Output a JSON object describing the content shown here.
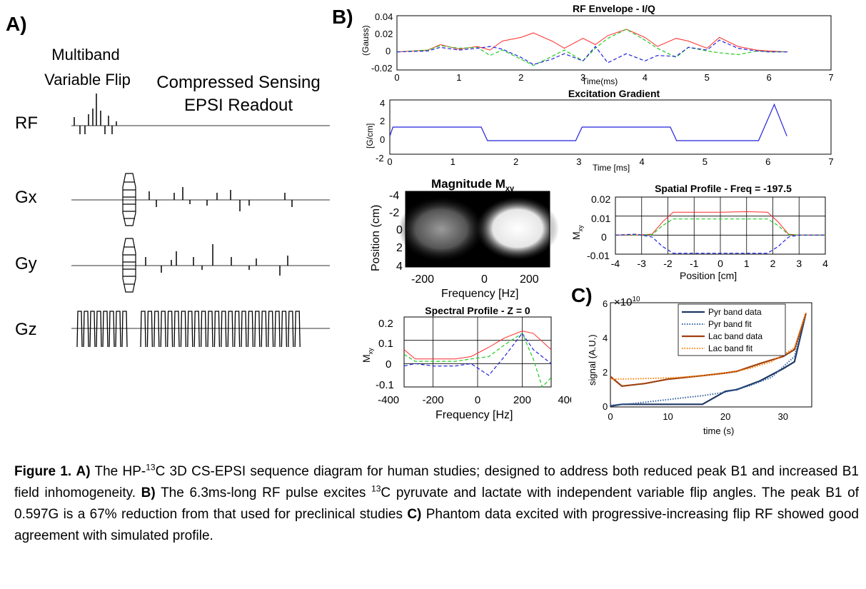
{
  "panelA": {
    "letter": "A)",
    "title_multiband": "Multiband",
    "title_variable_flip": "Variable Flip",
    "title_cs_line1": "Compressed Sensing",
    "title_cs_line2": "EPSI Readout",
    "row_labels": [
      "RF",
      "Gx",
      "Gy",
      "Gz"
    ]
  },
  "panelB": {
    "letter": "B)",
    "rf_envelope": {
      "title": "RF Envelope - I/Q",
      "ylabel": "(Gauss)",
      "xlabel": "Time(ms)",
      "xticks": [
        "0",
        "1",
        "2",
        "3",
        "4",
        "5",
        "6",
        "7"
      ],
      "yticks": [
        "0.04",
        "0.02",
        "0",
        "-0.02"
      ]
    },
    "excitation_gradient": {
      "title": "Excitation Gradient",
      "ylabel": "[G/cm]",
      "xlabel": "Time [ms]",
      "xticks": [
        "0",
        "1",
        "2",
        "3",
        "4",
        "5",
        "6",
        "7"
      ],
      "yticks": [
        "4",
        "2",
        "0",
        "-2"
      ]
    },
    "magnitude": {
      "title": "Magnitude M",
      "title_sub": "xy",
      "ylabel": "Position (cm)",
      "xlabel": "Frequency [Hz]",
      "yticks": [
        "-4",
        "-2",
        "0",
        "2",
        "4"
      ],
      "xticks": [
        "-200",
        "0",
        "200"
      ]
    },
    "spatial_profile": {
      "title": "Spatial Profile - Freq = -197.5",
      "ylabel": "M",
      "ylabel_sub": "xy",
      "xlabel": "Position [cm]",
      "yticks": [
        "0.02",
        "0.01",
        "0",
        "-0.01"
      ],
      "xticks": [
        "-4",
        "-3",
        "-2",
        "-1",
        "0",
        "1",
        "2",
        "3",
        "4"
      ]
    },
    "spectral_profile": {
      "title": "Spectral Profile - Z = 0",
      "ylabel": "M",
      "ylabel_sub": "xy",
      "xlabel": "Frequency [Hz]",
      "yticks": [
        "0.2",
        "0.1",
        "0",
        "-0.1"
      ],
      "xticks": [
        "-400",
        "-200",
        "0",
        "200",
        "400"
      ]
    }
  },
  "panelC": {
    "letter": "C)",
    "exponent": "×10",
    "exponent_power": "10",
    "ylabel": "signal (A.U.)",
    "xlabel": "time (s)",
    "yticks": [
      "6",
      "4",
      "2",
      "0"
    ],
    "xticks": [
      "0",
      "10",
      "20",
      "30"
    ],
    "legend": [
      "Pyr band data",
      "Pyr band fit",
      "Lac band data",
      "Lac band fit"
    ]
  },
  "colors": {
    "red": "#ff2a2a",
    "green": "#22cc22",
    "blue": "#2222dd",
    "pyr": "#1f3864",
    "lac": "#a04010",
    "lac_fit": "#ff8000",
    "sequence_gray": "#999999"
  },
  "chart_data": [
    {
      "type": "line",
      "title": "RF Envelope - I/Q",
      "xlabel": "Time(ms)",
      "ylabel": "(Gauss)",
      "xlim": [
        0,
        7
      ],
      "ylim": [
        -0.02,
        0.04
      ],
      "series": [
        {
          "x": [
            0,
            0.5,
            0.7,
            1.0,
            1.3,
            1.5,
            1.7,
            2.0,
            2.2,
            2.5,
            2.7,
            3.0,
            3.2,
            3.4,
            3.7,
            4.0,
            4.2,
            4.5,
            4.7,
            5.0,
            5.2,
            5.5,
            5.8,
            6.0,
            6.3
          ],
          "y": [
            0,
            0.002,
            0.008,
            0.003,
            0.006,
            0.002,
            0.012,
            0.016,
            0.021,
            0.012,
            0.004,
            0.015,
            0.008,
            0.018,
            0.025,
            0.016,
            0.006,
            0.015,
            0.012,
            0.004,
            0.016,
            0.006,
            0.002,
            0.001,
            0
          ]
        },
        {
          "x": [
            0,
            0.5,
            0.7,
            1.0,
            1.3,
            1.5,
            1.7,
            2.0,
            2.2,
            2.5,
            2.7,
            3.0,
            3.2,
            3.4,
            3.7,
            4.0,
            4.2,
            4.5,
            4.7,
            5.0,
            5.2,
            5.5,
            5.8,
            6.0,
            6.3
          ],
          "y": [
            0,
            0.002,
            0.007,
            0.004,
            0.005,
            -0.004,
            0.002,
            -0.008,
            -0.015,
            -0.005,
            0.002,
            -0.01,
            0.004,
            0.015,
            0.025,
            0.013,
            0.004,
            -0.006,
            0.005,
            0.001,
            -0.001,
            -0.003,
            0.001,
            0,
            0
          ]
        },
        {
          "x": [
            0,
            0.5,
            0.7,
            1.0,
            1.3,
            1.5,
            1.7,
            2.0,
            2.2,
            2.5,
            2.7,
            3.0,
            3.2,
            3.4,
            3.7,
            4.0,
            4.2,
            4.5,
            4.7,
            5.0,
            5.2,
            5.5,
            5.8,
            6.0,
            6.3
          ],
          "y": [
            0,
            0.001,
            0.005,
            0.002,
            0.004,
            0.006,
            0.003,
            -0.006,
            -0.014,
            -0.008,
            -0.002,
            -0.01,
            0.006,
            -0.012,
            -0.002,
            -0.01,
            -0.004,
            -0.005,
            0.005,
            0.002,
            0.013,
            0.004,
            0.001,
            0,
            0
          ]
        }
      ]
    },
    {
      "type": "line",
      "title": "Excitation Gradient",
      "xlabel": "Time [ms]",
      "ylabel": "[G/cm]",
      "xlim": [
        0,
        7
      ],
      "ylim": [
        -2,
        4
      ],
      "series": [
        {
          "x": [
            0,
            0.05,
            1.45,
            1.55,
            2.95,
            3.05,
            4.45,
            4.55,
            5.85,
            6.1,
            6.3
          ],
          "y": [
            0,
            1,
            1,
            -0.5,
            -0.5,
            1,
            1,
            -0.5,
            -0.5,
            3.5,
            0
          ]
        }
      ]
    },
    {
      "type": "heatmap",
      "title": "Magnitude Mxy",
      "xlabel": "Frequency [Hz]",
      "ylabel": "Position (cm)",
      "xlim": [
        -350,
        350
      ],
      "ylim": [
        -4,
        4
      ]
    },
    {
      "type": "line",
      "title": "Spatial Profile - Freq = -197.5",
      "xlabel": "Position [cm]",
      "ylabel": "Mxy",
      "xlim": [
        -4,
        4
      ],
      "ylim": [
        -0.01,
        0.02
      ],
      "series": [
        {
          "x": [
            -4,
            -3.2,
            -2.6,
            -2.2,
            -1.8,
            -1,
            0,
            1,
            1.8,
            2.2,
            2.6,
            3,
            4
          ],
          "y": [
            0,
            0,
            0.0005,
            0.007,
            0.012,
            0.012,
            0.012,
            0.0123,
            0.012,
            0.007,
            0.0005,
            0,
            0
          ]
        },
        {
          "x": [
            -4,
            -3.2,
            -2.6,
            -2.2,
            -1.8,
            -1,
            0,
            1,
            1.8,
            2.2,
            2.6,
            3,
            4
          ],
          "y": [
            0,
            0,
            0.0003,
            0.005,
            0.0085,
            0.0085,
            0.0085,
            0.0085,
            0.0085,
            0.005,
            0.0003,
            0,
            0
          ]
        },
        {
          "x": [
            -4,
            -3.2,
            -2.6,
            -2.2,
            -1.8,
            -1,
            0,
            1,
            1.8,
            2.2,
            2.6,
            3,
            4
          ],
          "y": [
            0,
            0.0005,
            -0.001,
            -0.006,
            -0.0095,
            -0.0095,
            -0.0095,
            -0.0095,
            -0.0095,
            -0.006,
            -0.001,
            0,
            0
          ]
        }
      ]
    },
    {
      "type": "line",
      "title": "Spectral Profile - Z = 0",
      "xlabel": "Frequency [Hz]",
      "ylabel": "Mxy",
      "xlim": [
        -400,
        400
      ],
      "ylim": [
        -0.1,
        0.2
      ],
      "series": [
        {
          "x": [
            -330,
            -280,
            -200,
            -100,
            -30,
            50,
            120,
            200,
            250,
            330
          ],
          "y": [
            0.06,
            0.02,
            0.02,
            0.02,
            0.03,
            0.07,
            0.11,
            0.14,
            0.13,
            0.06
          ]
        },
        {
          "x": [
            -330,
            -280,
            -200,
            -100,
            -30,
            50,
            120,
            200,
            250,
            290,
            330
          ],
          "y": [
            0.04,
            0.01,
            0.01,
            0.01,
            0.02,
            0.03,
            0.08,
            0.13,
            0.02,
            -0.1,
            -0.06
          ]
        },
        {
          "x": [
            -330,
            -280,
            -200,
            -100,
            -30,
            50,
            120,
            200,
            250,
            330
          ],
          "y": [
            -0.01,
            0,
            -0.01,
            -0.01,
            0,
            -0.05,
            0.03,
            0.13,
            0.06,
            0
          ]
        }
      ]
    },
    {
      "type": "line",
      "xlabel": "time (s)",
      "ylabel": "signal (A.U.)",
      "xlim": [
        0,
        35
      ],
      "ylim": [
        0,
        6
      ],
      "series": [
        {
          "name": "Pyr band data",
          "x": [
            0,
            2,
            6,
            10,
            16,
            20,
            22,
            26,
            30,
            32,
            34
          ],
          "y": [
            0.05,
            0.15,
            0.15,
            0.15,
            0.15,
            0.9,
            1.0,
            1.5,
            2.2,
            2.6,
            5.4
          ]
        },
        {
          "name": "Pyr band fit",
          "x": [
            0,
            4,
            8,
            12,
            16,
            20,
            24,
            28,
            32,
            34
          ],
          "y": [
            0.1,
            0.2,
            0.35,
            0.5,
            0.65,
            0.85,
            1.2,
            1.7,
            2.9,
            5.4
          ]
        },
        {
          "name": "Lac band data",
          "x": [
            0,
            2,
            6,
            10,
            16,
            20,
            22,
            26,
            30,
            32,
            34
          ],
          "y": [
            1.75,
            1.2,
            1.35,
            1.6,
            1.8,
            1.95,
            2.05,
            2.5,
            2.9,
            3.3,
            5.4
          ]
        },
        {
          "name": "Lac band fit",
          "x": [
            0,
            4,
            8,
            12,
            16,
            20,
            24,
            28,
            32,
            34
          ],
          "y": [
            1.6,
            1.62,
            1.65,
            1.7,
            1.8,
            1.95,
            2.2,
            2.6,
            3.4,
            5.4
          ]
        }
      ]
    }
  ],
  "caption": {
    "fig_label": "Figure 1.",
    "a_label": "A)",
    "a_text_1": " The HP-",
    "a_sup": "13",
    "a_text_2": "C 3D CS-EPSI sequence diagram for human studies; designed to address both reduced peak B1 and increased B1 field inhomogeneity. ",
    "b_label": "B)",
    "b_text_1": "  The 6.3ms-long RF pulse excites ",
    "b_sup": "13",
    "b_text_2": "C pyruvate and lactate with independent variable flip angles. The peak B1 of 0.597G is a 67% reduction from that used for preclinical studies ",
    "c_label": "C)",
    "c_text": " Phantom data excited with progressive-increasing flip RF showed good agreement with simulated profile."
  }
}
